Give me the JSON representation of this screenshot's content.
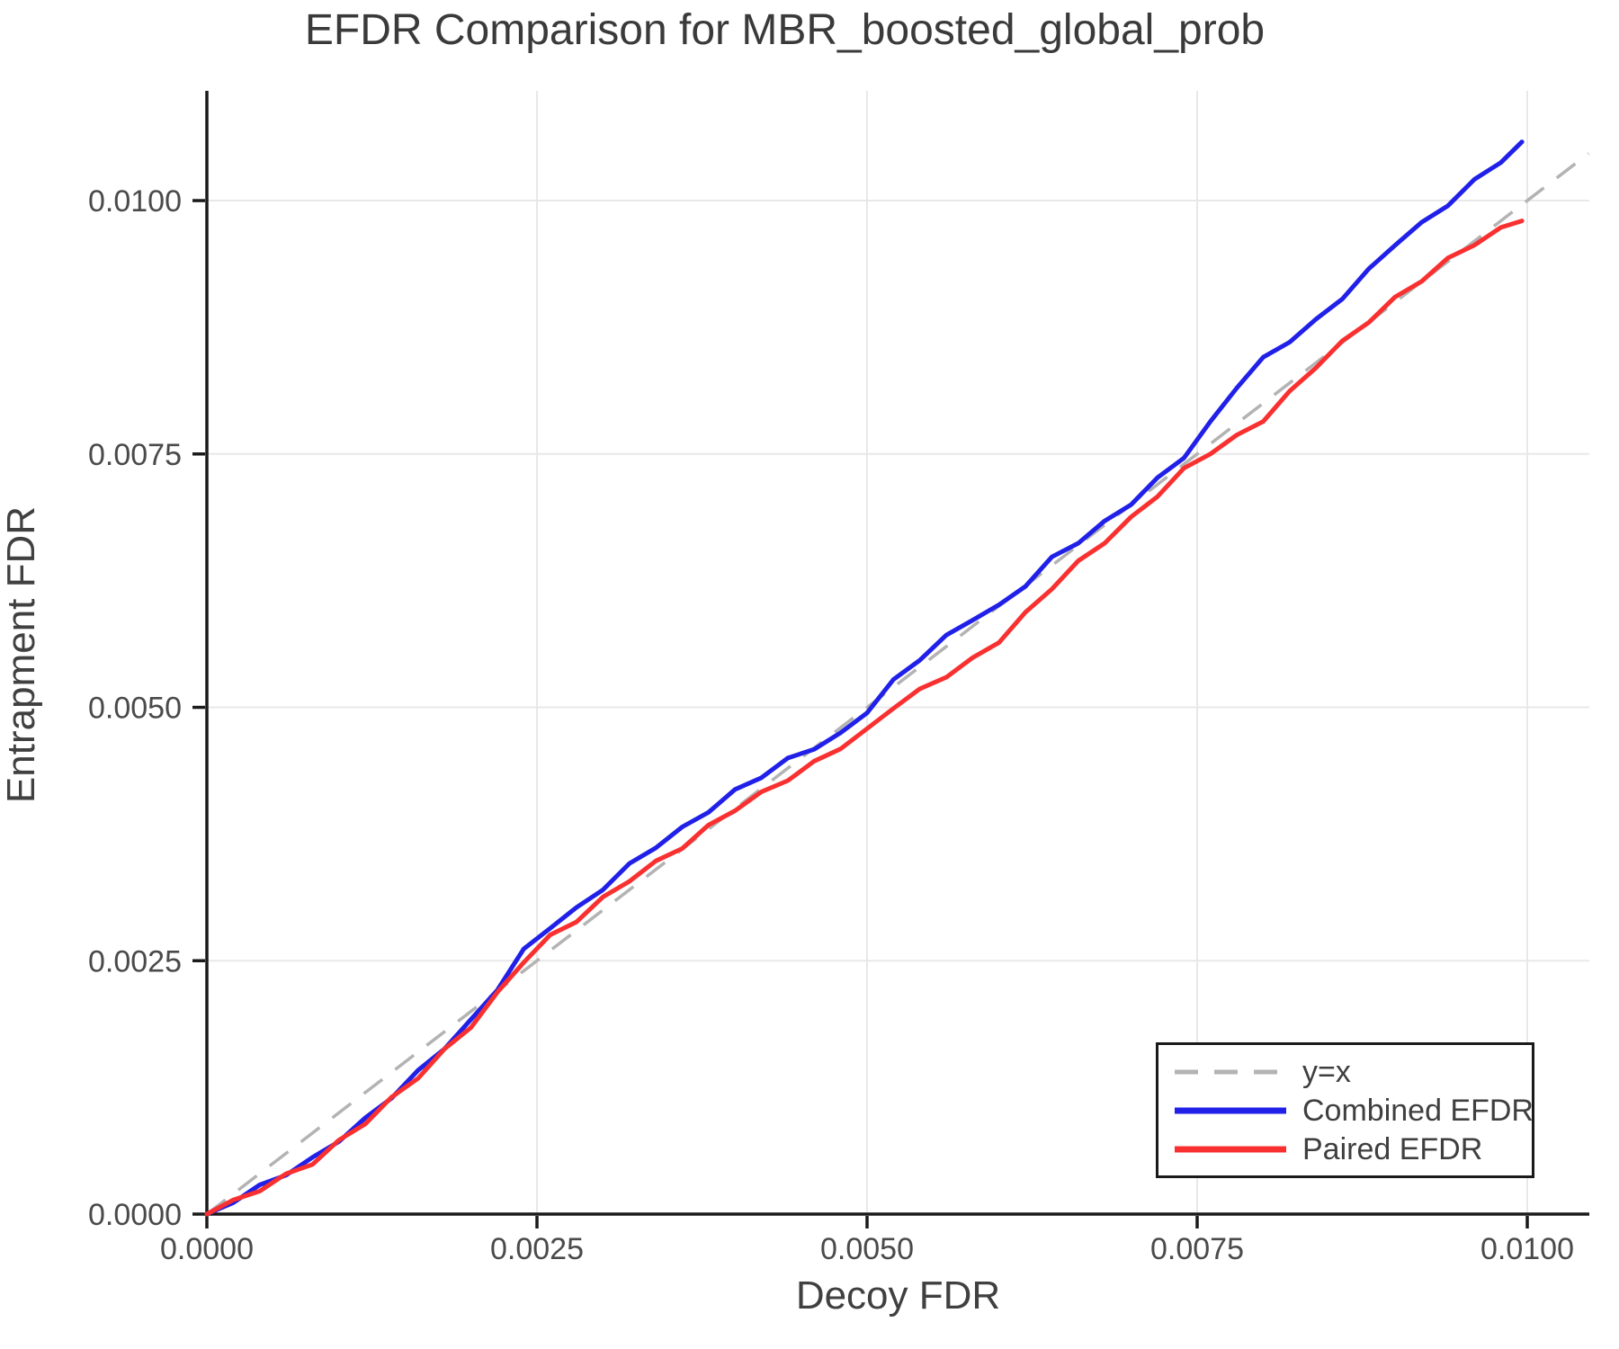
{
  "chart_data": {
    "type": "line",
    "title": "EFDR Comparison for MBR_boosted_global_prob",
    "xlabel": "Decoy FDR",
    "ylabel": "Entrapment FDR",
    "xlim": [
      0,
      0.01047
    ],
    "ylim": [
      0,
      0.011083
    ],
    "grid": true,
    "legend_position": "lower right",
    "xticks": {
      "values": [
        0.0,
        0.0025,
        0.005,
        0.0075,
        0.01
      ],
      "labels": [
        "0.0000",
        "0.0025",
        "0.0050",
        "0.0075",
        "0.0100"
      ]
    },
    "yticks": {
      "values": [
        0.0,
        0.0025,
        0.005,
        0.0075,
        0.01
      ],
      "labels": [
        "0.0000",
        "0.0025",
        "0.0050",
        "0.0075",
        "0.0100"
      ]
    },
    "series": [
      {
        "name": "y=x",
        "type": "reference-line",
        "style": "dashed",
        "color": "#b3b3b3",
        "from": [
          0,
          0
        ],
        "to": [
          0.010465,
          0.010465
        ]
      },
      {
        "name": "Combined EFDR",
        "type": "line",
        "color": "#2020e8",
        "x": [
          0,
          0.0002,
          0.0004,
          0.0006,
          0.0008,
          0.001,
          0.0012,
          0.0014,
          0.0016,
          0.0018,
          0.002,
          0.0022,
          0.0024,
          0.0026,
          0.0028,
          0.003,
          0.0032,
          0.0034,
          0.0036,
          0.0038,
          0.004,
          0.0042,
          0.0044,
          0.0046,
          0.0048,
          0.005,
          0.0052,
          0.0054,
          0.0056,
          0.0058,
          0.006,
          0.0062,
          0.0064,
          0.0066,
          0.0068,
          0.007,
          0.0072,
          0.0074,
          0.0076,
          0.0078,
          0.008,
          0.0082,
          0.0084,
          0.0086,
          0.0088,
          0.009,
          0.0092,
          0.0094,
          0.0096,
          0.0098,
          0.00996
        ],
        "y": [
          0,
          0.000113,
          0.000288,
          0.000384,
          0.00056,
          0.000715,
          0.00095,
          0.001145,
          0.00142,
          0.00163,
          0.00192,
          0.00221,
          0.002617,
          0.00282,
          0.003027,
          0.0032,
          0.00346,
          0.003613,
          0.00382,
          0.003965,
          0.00419,
          0.004305,
          0.0045,
          0.004587,
          0.00475,
          0.004945,
          0.005275,
          0.005465,
          0.005713,
          0.00586,
          0.006013,
          0.006195,
          0.006485,
          0.00662,
          0.00684,
          0.007,
          0.007267,
          0.00746,
          0.00782,
          0.00815,
          0.008455,
          0.008603,
          0.00883,
          0.00903,
          0.009327,
          0.00956,
          0.009787,
          0.00995,
          0.01021,
          0.010375,
          0.01058
        ]
      },
      {
        "name": "Paired EFDR",
        "type": "line",
        "color": "#f93030",
        "x": [
          0,
          0.0002,
          0.0004,
          0.0006,
          0.0008,
          0.001,
          0.0012,
          0.0014,
          0.0016,
          0.0018,
          0.002,
          0.0022,
          0.0024,
          0.0026,
          0.0028,
          0.003,
          0.0032,
          0.0034,
          0.0036,
          0.0038,
          0.004,
          0.0042,
          0.0044,
          0.0046,
          0.0048,
          0.005,
          0.0052,
          0.0054,
          0.0056,
          0.0058,
          0.006,
          0.0062,
          0.0064,
          0.0066,
          0.0068,
          0.007,
          0.0072,
          0.0074,
          0.0076,
          0.0078,
          0.008,
          0.0082,
          0.0084,
          0.0086,
          0.0088,
          0.009,
          0.0092,
          0.0094,
          0.0096,
          0.0098,
          0.00996
        ],
        "y": [
          0,
          0.00014,
          0.000226,
          0.000398,
          0.00049,
          0.00073,
          0.00089,
          0.001155,
          0.00134,
          0.00163,
          0.00184,
          0.00219,
          0.002483,
          0.002755,
          0.002883,
          0.00313,
          0.003283,
          0.003485,
          0.003607,
          0.00384,
          0.00398,
          0.004167,
          0.004277,
          0.00447,
          0.00459,
          0.00479,
          0.00499,
          0.005183,
          0.005297,
          0.00549,
          0.00564,
          0.00594,
          0.006167,
          0.006447,
          0.00662,
          0.00688,
          0.00708,
          0.00736,
          0.0075,
          0.007687,
          0.00782,
          0.00812,
          0.00835,
          0.008617,
          0.008797,
          0.00905,
          0.009203,
          0.009435,
          0.00956,
          0.009735,
          0.0098
        ]
      }
    ],
    "axis_style": {
      "spine_color": "#1a1a1a",
      "grid_color": "#e8e8e8",
      "tick_label_color": "#4a4a4a",
      "line_width": 5
    }
  }
}
